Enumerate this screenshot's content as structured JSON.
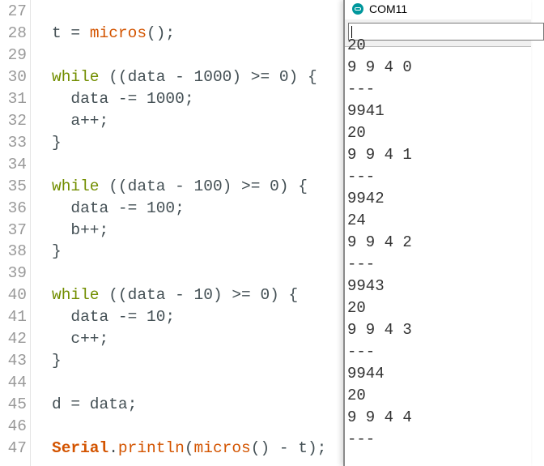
{
  "editor": {
    "lines": [
      {
        "num": "27",
        "tokens": []
      },
      {
        "num": "28",
        "tokens": [
          [
            "t = ",
            ""
          ],
          [
            "micros",
            "fn"
          ],
          [
            "();",
            ""
          ]
        ]
      },
      {
        "num": "29",
        "tokens": []
      },
      {
        "num": "30",
        "tokens": [
          [
            "while",
            "kw"
          ],
          [
            " ((data - 1000) >= 0) {",
            ""
          ]
        ]
      },
      {
        "num": "31",
        "tokens": [
          [
            "  data -= 1000;",
            ""
          ]
        ]
      },
      {
        "num": "32",
        "tokens": [
          [
            "  a++;",
            ""
          ]
        ]
      },
      {
        "num": "33",
        "tokens": [
          [
            "}",
            ""
          ]
        ]
      },
      {
        "num": "34",
        "tokens": []
      },
      {
        "num": "35",
        "tokens": [
          [
            "while",
            "kw"
          ],
          [
            " ((data - 100) >= 0) {",
            ""
          ]
        ]
      },
      {
        "num": "36",
        "tokens": [
          [
            "  data -= 100;",
            ""
          ]
        ]
      },
      {
        "num": "37",
        "tokens": [
          [
            "  b++;",
            ""
          ]
        ]
      },
      {
        "num": "38",
        "tokens": [
          [
            "}",
            ""
          ]
        ]
      },
      {
        "num": "39",
        "tokens": []
      },
      {
        "num": "40",
        "tokens": [
          [
            "while",
            "kw"
          ],
          [
            " ((data - 10) >= 0) {",
            ""
          ]
        ]
      },
      {
        "num": "41",
        "tokens": [
          [
            "  data -= 10;",
            ""
          ]
        ]
      },
      {
        "num": "42",
        "tokens": [
          [
            "  c++;",
            ""
          ]
        ]
      },
      {
        "num": "43",
        "tokens": [
          [
            "}",
            ""
          ]
        ]
      },
      {
        "num": "44",
        "tokens": []
      },
      {
        "num": "45",
        "tokens": [
          [
            "d = data;",
            ""
          ]
        ]
      },
      {
        "num": "46",
        "tokens": []
      },
      {
        "num": "47",
        "tokens": [
          [
            "Serial",
            "cls"
          ],
          [
            ".",
            ""
          ],
          [
            "println",
            "fn"
          ],
          [
            "(",
            ""
          ],
          [
            "micros",
            "fn"
          ],
          [
            "() - t);",
            ""
          ]
        ]
      }
    ]
  },
  "monitor": {
    "title": "COM11",
    "input_value": "",
    "output": [
      "20",
      "9 9 4 0",
      "---",
      "9941",
      "20",
      "9 9 4 1",
      "---",
      "9942",
      "24",
      "9 9 4 2",
      "---",
      "9943",
      "20",
      "9 9 4 3",
      "---",
      "9944",
      "20",
      "9 9 4 4",
      "---"
    ]
  },
  "colors": {
    "keyword": "#728e00",
    "function": "#d35400",
    "arduino_teal": "#00979c"
  }
}
